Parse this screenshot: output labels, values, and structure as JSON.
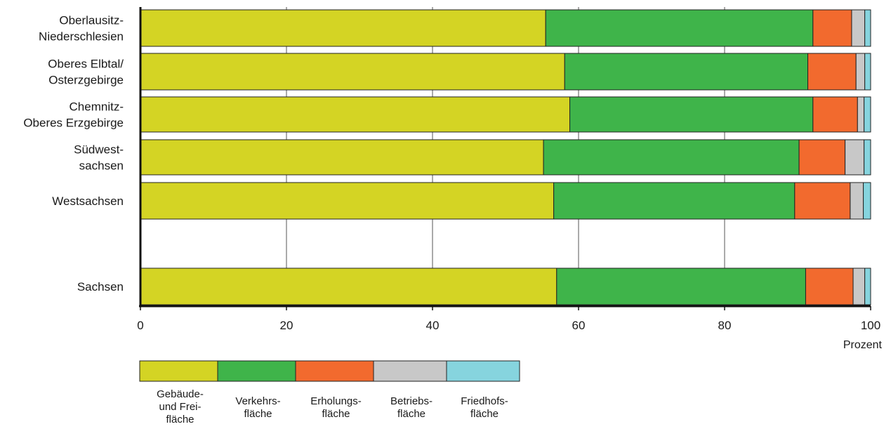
{
  "chart_data": {
    "type": "bar",
    "orientation": "horizontal",
    "stacked": true,
    "xlim": [
      0,
      100
    ],
    "xticks": [
      0,
      20,
      40,
      60,
      80,
      100
    ],
    "xlabel": "Prozent",
    "grid": true,
    "categories": [
      [
        "Oberlausitz-",
        "Niederschlesien"
      ],
      [
        "Oberes Elbtal/",
        "Osterzgebirge"
      ],
      [
        "Chemnitz-",
        "Oberes Erzgebirge"
      ],
      [
        "Südwest-",
        "sachsen"
      ],
      [
        "Westsachsen"
      ],
      [
        "Sachsen"
      ]
    ],
    "series": [
      {
        "name": [
          "Gebäude-",
          "und Frei-",
          "fläche"
        ],
        "color": "#d4d424",
        "values": [
          55.5,
          58.1,
          58.8,
          55.2,
          56.6,
          57.0
        ]
      },
      {
        "name": [
          "Verkehrs-",
          "fläche"
        ],
        "color": "#3fb44a",
        "values": [
          36.6,
          33.3,
          33.3,
          35.0,
          33.0,
          34.1
        ]
      },
      {
        "name": [
          "Erholungs-",
          "fläche"
        ],
        "color": "#f26a2e",
        "values": [
          5.3,
          6.6,
          6.1,
          6.3,
          7.6,
          6.5
        ]
      },
      {
        "name": [
          "Betriebs-",
          "fläche"
        ],
        "color": "#c8c8c8",
        "values": [
          1.8,
          1.2,
          0.9,
          2.6,
          1.8,
          1.6
        ]
      },
      {
        "name": [
          "Friedhofs-",
          "fläche"
        ],
        "color": "#86d4de",
        "values": [
          0.8,
          0.8,
          0.9,
          0.9,
          1.0,
          0.8
        ]
      }
    ]
  }
}
